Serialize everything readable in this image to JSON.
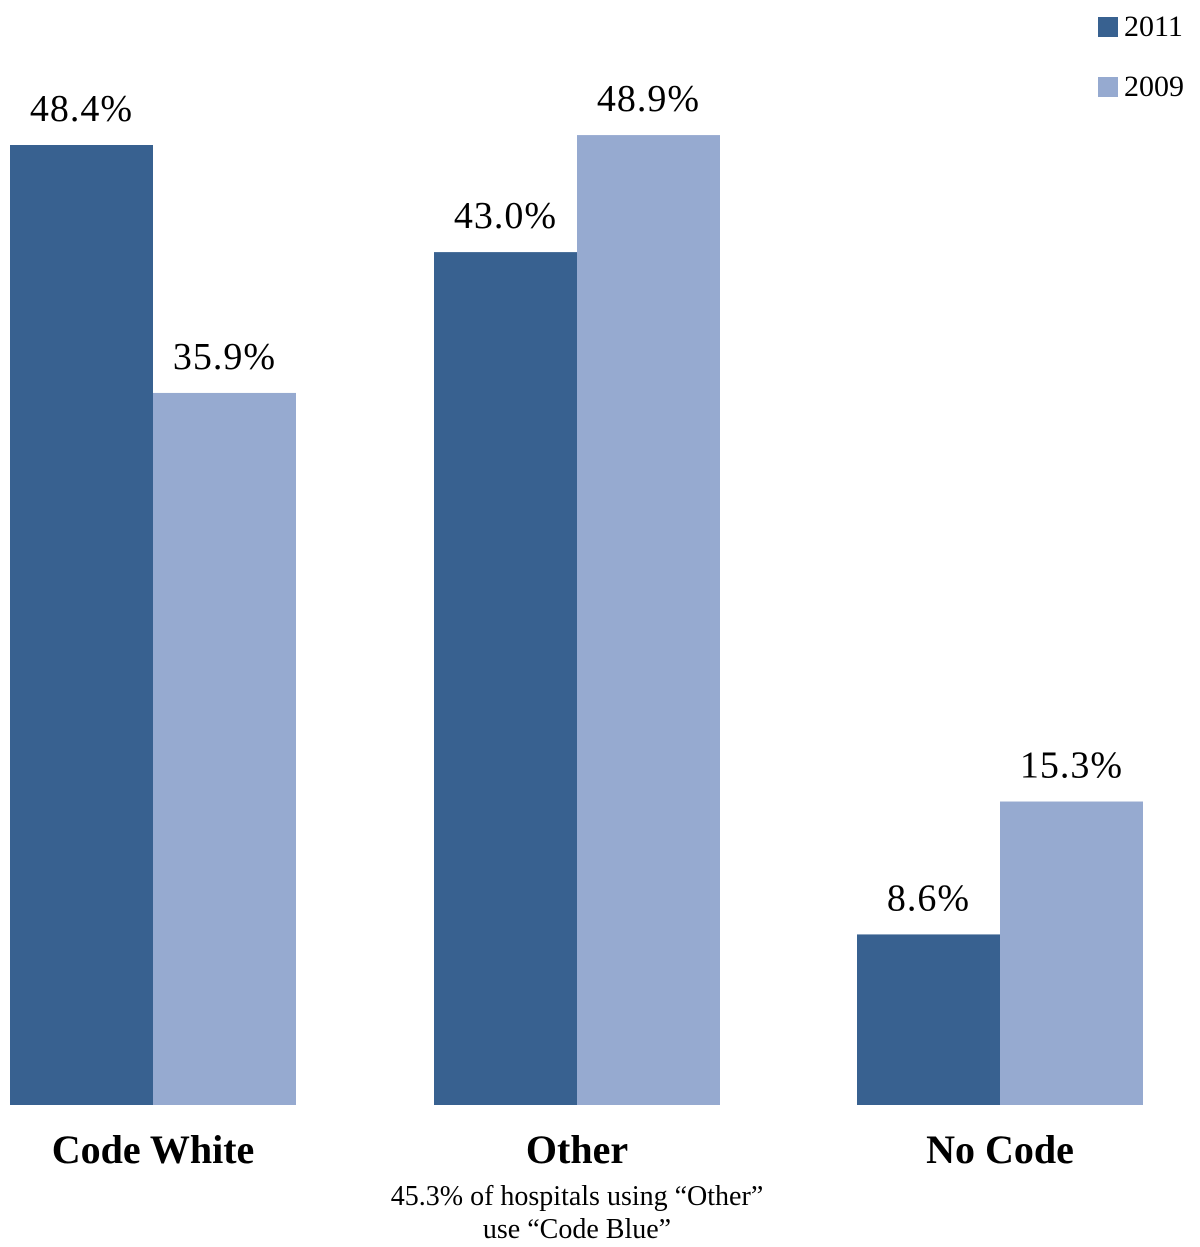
{
  "chart_data": {
    "type": "bar",
    "categories": [
      "Code White",
      "Other",
      "No Code"
    ],
    "series": [
      {
        "name": "2011",
        "color": "#386190",
        "values": [
          48.4,
          43.0,
          8.6
        ],
        "labels": [
          "48.4%",
          "43.0%",
          "8.6%"
        ]
      },
      {
        "name": "2009",
        "color": "#96aad0",
        "values": [
          35.9,
          48.9,
          15.3
        ],
        "labels": [
          "35.9%",
          "48.9%",
          "15.3%"
        ]
      }
    ],
    "ylim": [
      0,
      55
    ],
    "grid": false,
    "legend_position": "top-right",
    "annotations": [
      {
        "category": "Other",
        "lines": [
          "45.3% of hospitals using “Other”",
          "use “Code Blue”"
        ]
      }
    ]
  }
}
